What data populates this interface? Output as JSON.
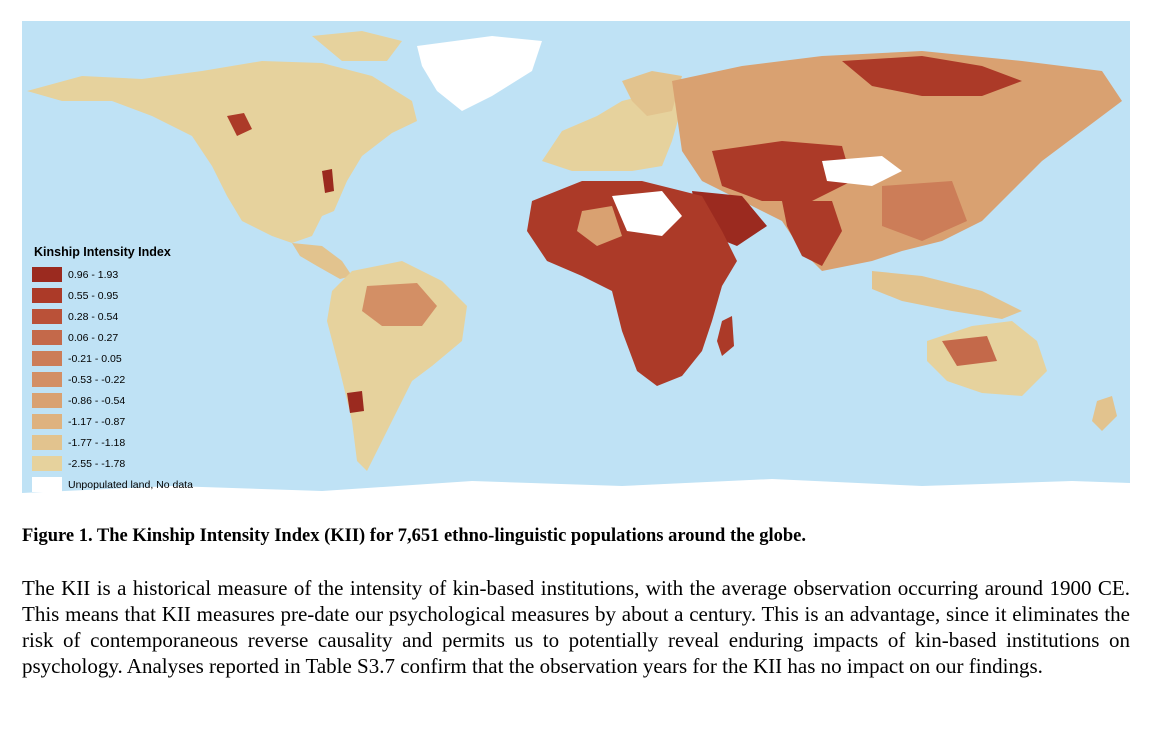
{
  "figure": {
    "legend": {
      "title": "Kinship Intensity Index",
      "items": [
        {
          "label": "0.96 - 1.93",
          "color": "#9b2a1f"
        },
        {
          "label": "0.55 - 0.95",
          "color": "#ac3a28"
        },
        {
          "label": "0.28 - 0.54",
          "color": "#ba5138"
        },
        {
          "label": "0.06 - 0.27",
          "color": "#c4694a"
        },
        {
          "label": "-0.21 - 0.05",
          "color": "#cc7d58"
        },
        {
          "label": "-0.53 - -0.22",
          "color": "#d38f65"
        },
        {
          "label": "-0.86 - -0.54",
          "color": "#d9a171"
        },
        {
          "label": "-1.17 - -0.87",
          "color": "#deb27f"
        },
        {
          "label": "-1.77 - -1.18",
          "color": "#e2c38e"
        },
        {
          "label": "-2.55 - -1.78",
          "color": "#e6d29d"
        },
        {
          "label": "Unpopulated land, No data",
          "color": "#ffffff"
        }
      ]
    },
    "colors": {
      "ocean": "#bfe2f5",
      "unpopulated": "#ffffff"
    }
  },
  "caption": "Figure 1. The Kinship Intensity Index (KII) for 7,651 ethno-linguistic populations around the globe.",
  "body_text": "The KII is a historical measure of the intensity of kin-based institutions, with the average observation occurring around 1900 CE. This means that KII measures pre-date our psychological measures by about a century. This is an advantage, since it eliminates the risk of contemporaneous reverse causality and permits us to potentially reveal enduring impacts of kin-based institutions on psychology. Analyses reported in Table S3.7 confirm that the observation years for the KII has no impact on our findings."
}
